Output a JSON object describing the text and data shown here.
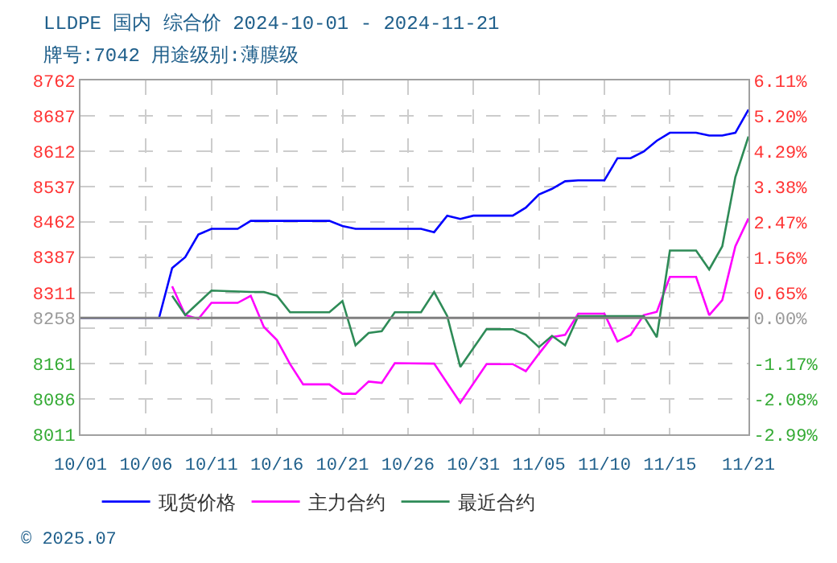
{
  "chart_data": {
    "type": "line",
    "title": "LLDPE 国内 综合价 2024-10-01 - 2024-11-21",
    "subtitle": "牌号:7042 用途级别:薄膜级",
    "xlim": [
      "2024-10-01",
      "2024-11-21"
    ],
    "xticks": [
      {
        "value": "2024-10-01",
        "label": "10/01"
      },
      {
        "value": "2024-10-06",
        "label": "10/06"
      },
      {
        "value": "2024-10-11",
        "label": "10/11"
      },
      {
        "value": "2024-10-16",
        "label": "10/16"
      },
      {
        "value": "2024-10-21",
        "label": "10/21"
      },
      {
        "value": "2024-10-26",
        "label": "10/26"
      },
      {
        "value": "2024-10-31",
        "label": "10/31"
      },
      {
        "value": "2024-11-05",
        "label": "11/05"
      },
      {
        "value": "2024-11-10",
        "label": "11/10"
      },
      {
        "value": "2024-11-15",
        "label": "11/15"
      },
      {
        "value": "2024-11-21",
        "label": "11/21"
      }
    ],
    "ylim": [
      8011,
      8762
    ],
    "yticks": [
      8011,
      8086,
      8161,
      {
        "value": 8236,
        "label": null
      },
      8258,
      8311,
      8387,
      8462,
      8537,
      8612,
      8687,
      8762
    ],
    "y2lim": [
      -2.99,
      6.11
    ],
    "y2ticks": [
      {
        "value": -2.99,
        "label": "-2.99%"
      },
      {
        "value": -2.08,
        "label": "-2.08%"
      },
      {
        "value": -1.17,
        "label": "-1.17%"
      },
      {
        "value": -0.26,
        "label": null
      },
      {
        "value": 0,
        "label": "0.00%"
      },
      {
        "value": 0.65,
        "label": "0.65%"
      },
      {
        "value": 1.56,
        "label": "1.56%"
      },
      {
        "value": 2.47,
        "label": "2.47%"
      },
      {
        "value": 3.38,
        "label": "3.38%"
      },
      {
        "value": 4.29,
        "label": "4.29%"
      },
      {
        "value": 5.2,
        "label": "5.20%"
      },
      {
        "value": 6.11,
        "label": "6.11%"
      }
    ],
    "grid": true,
    "legend": "bottom",
    "ref_lines": [
      {
        "axis": "y",
        "value": 8258,
        "color": "#808080"
      }
    ],
    "annotations": [
      "© 2025.07"
    ],
    "series": [
      {
        "name": "现货价格",
        "color": "#0000ff",
        "x": [
          "2024-10-01",
          "2024-10-07",
          "2024-10-08",
          "2024-10-09",
          "2024-10-10",
          "2024-10-11",
          "2024-10-13",
          "2024-10-14",
          "2024-10-20",
          "2024-10-21",
          "2024-10-22",
          "2024-10-27",
          "2024-10-28",
          "2024-10-29",
          "2024-10-30",
          "2024-10-31",
          "2024-11-03",
          "2024-11-04",
          "2024-11-05",
          "2024-11-06",
          "2024-11-07",
          "2024-11-08",
          "2024-11-10",
          "2024-11-11",
          "2024-11-12",
          "2024-11-13",
          "2024-11-14",
          "2024-11-15",
          "2024-11-17",
          "2024-11-18",
          "2024-11-19",
          "2024-11-20",
          "2024-11-21"
        ],
        "values": [
          8258,
          8258,
          8364,
          8387,
          8435,
          8447,
          8447,
          8464,
          8464,
          8453,
          8447,
          8447,
          8440,
          8475,
          8468,
          8475,
          8475,
          8492,
          8520,
          8532,
          8548,
          8550,
          8550,
          8597,
          8597,
          8611,
          8634,
          8651,
          8651,
          8645,
          8645,
          8651,
          8700
        ]
      },
      {
        "name": "主力合约",
        "color": "#ff00ff",
        "x": [
          "2024-10-08",
          "2024-10-09",
          "2024-10-10",
          "2024-10-11",
          "2024-10-13",
          "2024-10-14",
          "2024-10-15",
          "2024-10-16",
          "2024-10-17",
          "2024-10-18",
          "2024-10-20",
          "2024-10-21",
          "2024-10-22",
          "2024-10-23",
          "2024-10-24",
          "2024-10-25",
          "2024-10-28",
          "2024-10-30",
          "2024-11-01",
          "2024-11-03",
          "2024-11-04",
          "2024-11-05",
          "2024-11-06",
          "2024-11-07",
          "2024-11-08",
          "2024-11-10",
          "2024-11-11",
          "2024-11-12",
          "2024-11-13",
          "2024-11-14",
          "2024-11-15",
          "2024-11-17",
          "2024-11-18",
          "2024-11-19",
          "2024-11-20",
          "2024-11-21"
        ],
        "values": [
          8325,
          8264,
          8256,
          8290,
          8290,
          8305,
          8239,
          8211,
          8160,
          8117,
          8117,
          8097,
          8097,
          8123,
          8120,
          8162,
          8161,
          8078,
          8160,
          8160,
          8145,
          8182,
          8217,
          8222,
          8267,
          8267,
          8208,
          8222,
          8264,
          8271,
          8345,
          8345,
          8264,
          8296,
          8410,
          8469
        ]
      },
      {
        "name": "最近合约",
        "color": "#2e8b57",
        "x": [
          "2024-10-08",
          "2024-10-09",
          "2024-10-10",
          "2024-10-11",
          "2024-10-14",
          "2024-10-15",
          "2024-10-16",
          "2024-10-17",
          "2024-10-20",
          "2024-10-21",
          "2024-10-22",
          "2024-10-23",
          "2024-10-24",
          "2024-10-25",
          "2024-10-27",
          "2024-10-28",
          "2024-10-29",
          "2024-10-30",
          "2024-11-01",
          "2024-11-03",
          "2024-11-04",
          "2024-11-05",
          "2024-11-06",
          "2024-11-07",
          "2024-11-08",
          "2024-11-13",
          "2024-11-14",
          "2024-11-15",
          "2024-11-17",
          "2024-11-18",
          "2024-11-19",
          "2024-11-20",
          "2024-11-21"
        ],
        "values": [
          8305,
          8264,
          8290,
          8316,
          8313,
          8313,
          8305,
          8270,
          8270,
          8294,
          8200,
          8226,
          8230,
          8270,
          8270,
          8313,
          8262,
          8154,
          8234,
          8234,
          8222,
          8196,
          8220,
          8200,
          8262,
          8262,
          8217,
          8401,
          8401,
          8361,
          8410,
          8557,
          8643
        ]
      }
    ]
  }
}
